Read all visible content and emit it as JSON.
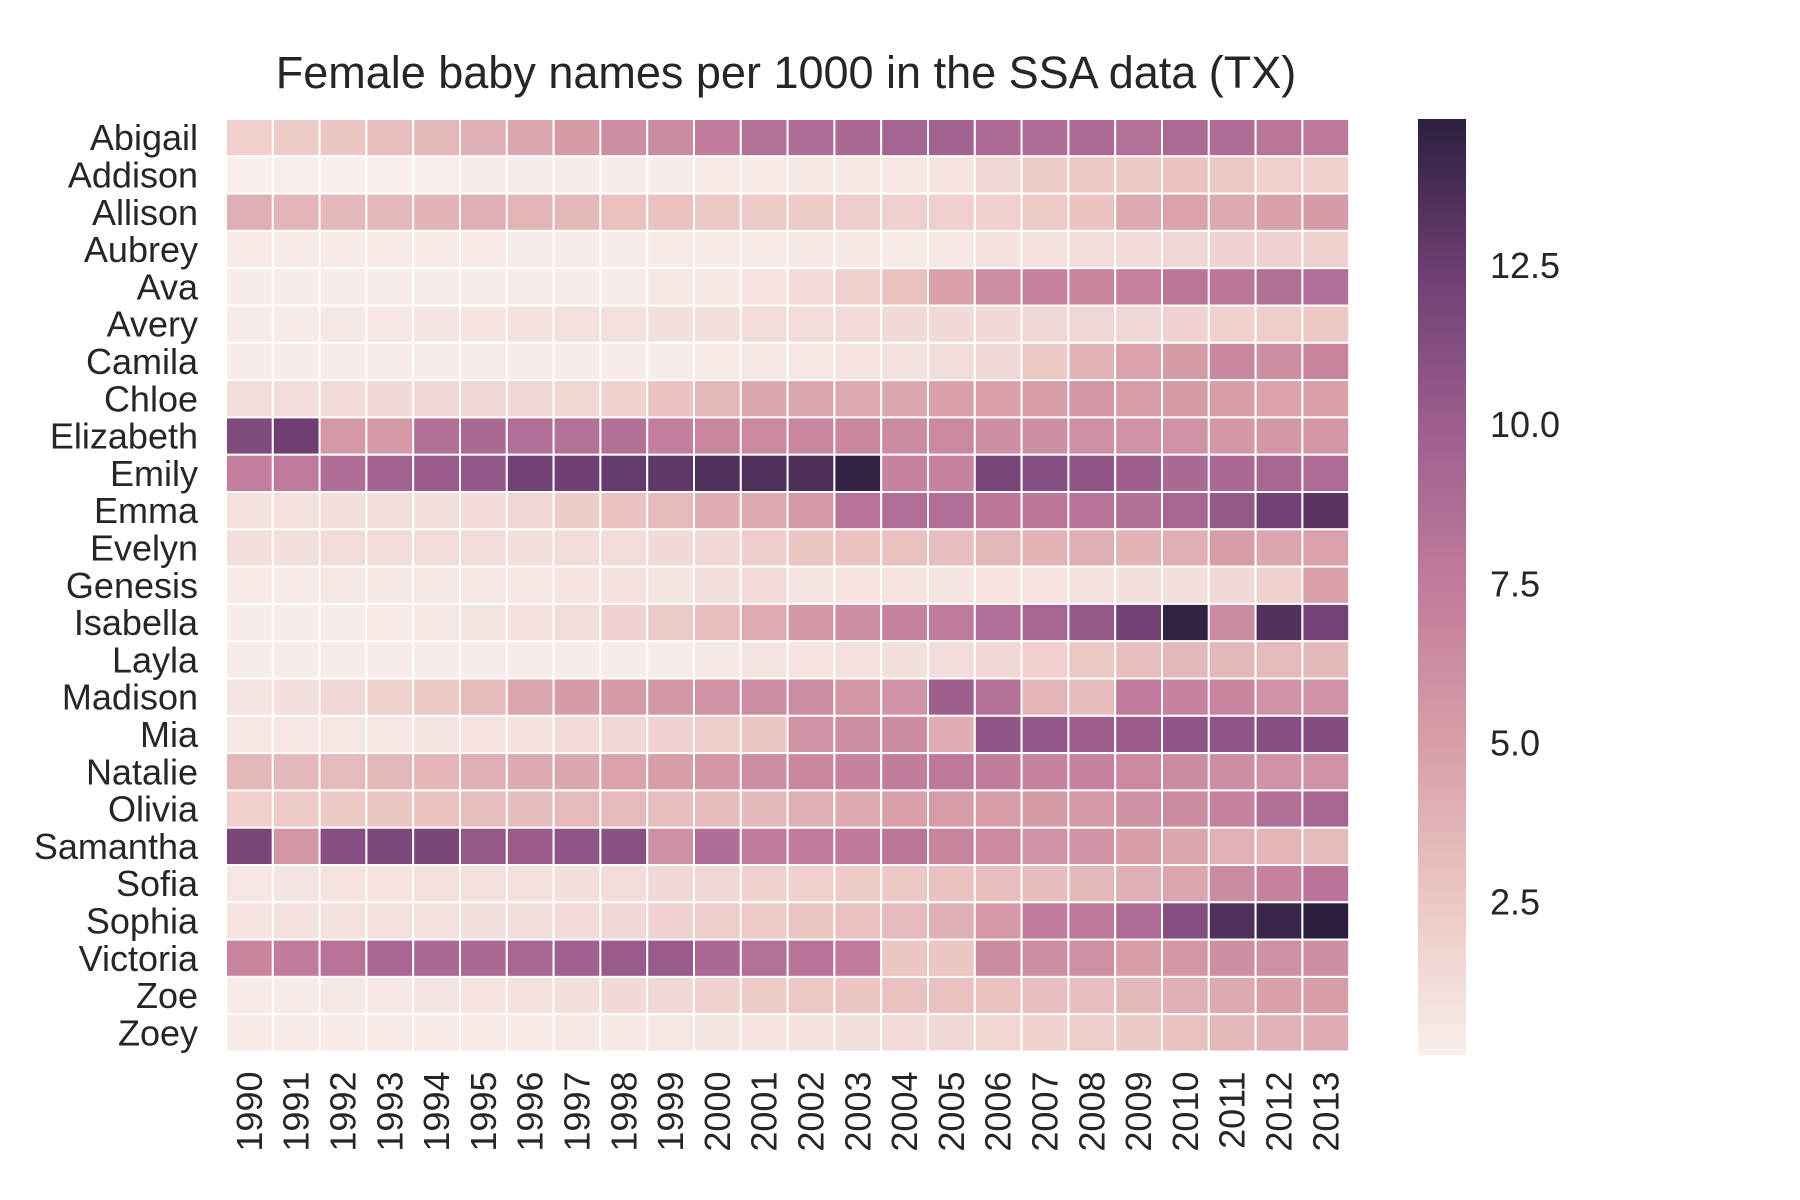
{
  "chart_data": {
    "type": "heatmap",
    "title": "Female baby names per 1000 in the SSA data (TX)",
    "xlabel": "",
    "ylabel": "",
    "x": [
      "1990",
      "1991",
      "1992",
      "1993",
      "1994",
      "1995",
      "1996",
      "1997",
      "1998",
      "1999",
      "2000",
      "2001",
      "2002",
      "2003",
      "2004",
      "2005",
      "2006",
      "2007",
      "2008",
      "2009",
      "2010",
      "2011",
      "2012",
      "2013"
    ],
    "y": [
      "Abigail",
      "Addison",
      "Allison",
      "Aubrey",
      "Ava",
      "Avery",
      "Camila",
      "Chloe",
      "Elizabeth",
      "Emily",
      "Emma",
      "Evelyn",
      "Genesis",
      "Isabella",
      "Layla",
      "Madison",
      "Mia",
      "Natalie",
      "Olivia",
      "Samantha",
      "Sofia",
      "Sophia",
      "Victoria",
      "Zoe",
      "Zoey"
    ],
    "values": [
      [
        2.0,
        2.3,
        2.6,
        3.0,
        3.4,
        3.9,
        4.4,
        5.2,
        6.2,
        6.4,
        7.4,
        8.4,
        8.7,
        9.0,
        9.4,
        9.6,
        8.9,
        8.7,
        8.9,
        8.4,
        8.9,
        8.7,
        8.0,
        7.7
      ],
      [
        0.1,
        0.1,
        0.1,
        0.1,
        0.1,
        0.2,
        0.2,
        0.2,
        0.3,
        0.3,
        0.4,
        0.4,
        0.5,
        0.6,
        0.6,
        0.8,
        1.6,
        2.2,
        2.4,
        2.4,
        2.7,
        2.4,
        2.0,
        2.0
      ],
      [
        4.0,
        3.6,
        3.4,
        3.4,
        3.7,
        4.0,
        3.6,
        3.4,
        2.9,
        2.8,
        2.4,
        2.3,
        2.3,
        2.1,
        2.0,
        2.0,
        2.0,
        2.3,
        2.7,
        4.3,
        4.7,
        4.3,
        4.9,
        5.2
      ],
      [
        0.4,
        0.4,
        0.4,
        0.4,
        0.4,
        0.4,
        0.3,
        0.3,
        0.3,
        0.4,
        0.4,
        0.4,
        0.5,
        0.5,
        0.4,
        0.6,
        0.9,
        1.0,
        1.2,
        1.3,
        1.6,
        1.8,
        1.8,
        1.9
      ],
      [
        0.2,
        0.2,
        0.2,
        0.2,
        0.2,
        0.2,
        0.2,
        0.2,
        0.3,
        0.5,
        0.5,
        0.8,
        1.3,
        1.9,
        2.8,
        4.8,
        6.3,
        7.0,
        6.8,
        7.1,
        8.0,
        7.9,
        8.5,
        8.6
      ],
      [
        0.3,
        0.4,
        0.5,
        0.6,
        0.7,
        0.8,
        0.9,
        1.0,
        1.0,
        1.1,
        1.1,
        1.2,
        1.2,
        1.3,
        1.4,
        1.4,
        1.4,
        1.5,
        1.6,
        1.6,
        1.8,
        1.9,
        2.1,
        2.4
      ],
      [
        0.2,
        0.2,
        0.2,
        0.2,
        0.2,
        0.3,
        0.3,
        0.3,
        0.3,
        0.3,
        0.4,
        0.5,
        0.6,
        0.8,
        0.9,
        1.2,
        1.5,
        2.4,
        3.7,
        4.7,
        5.2,
        6.6,
        6.1,
        6.9
      ],
      [
        1.2,
        1.2,
        1.3,
        1.4,
        1.5,
        1.6,
        1.6,
        1.7,
        1.9,
        2.7,
        3.5,
        4.4,
        4.6,
        4.3,
        4.4,
        4.8,
        4.8,
        5.0,
        5.5,
        5.1,
        5.2,
        5.0,
        4.7,
        4.9
      ],
      [
        11.5,
        12.4,
        5.4,
        5.4,
        8.5,
        9.0,
        8.6,
        8.4,
        8.5,
        7.3,
        6.7,
        6.5,
        6.7,
        6.6,
        6.4,
        6.5,
        6.1,
        6.1,
        6.0,
        5.9,
        5.8,
        5.5,
        5.5,
        5.6
      ],
      [
        7.3,
        7.6,
        8.7,
        9.5,
        10.2,
        10.5,
        12.2,
        12.3,
        12.7,
        13.0,
        13.5,
        13.5,
        13.6,
        14.5,
        7.0,
        7.0,
        12.0,
        11.1,
        10.6,
        9.9,
        9.0,
        9.1,
        9.2,
        8.8
      ],
      [
        0.9,
        1.0,
        1.1,
        1.1,
        1.1,
        1.3,
        1.6,
        2.2,
        2.8,
        3.3,
        4.1,
        4.3,
        5.4,
        8.2,
        8.6,
        8.6,
        8.0,
        7.9,
        8.2,
        8.5,
        9.3,
        10.3,
        12.2,
        13.1
      ],
      [
        1.1,
        1.1,
        1.2,
        1.2,
        1.2,
        1.2,
        1.1,
        1.2,
        1.2,
        1.4,
        1.5,
        2.1,
        2.6,
        2.8,
        2.9,
        3.1,
        3.5,
        3.7,
        4.0,
        3.7,
        4.0,
        5.0,
        4.5,
        4.7
      ],
      [
        0.4,
        0.4,
        0.5,
        0.5,
        0.5,
        0.6,
        0.6,
        0.8,
        0.9,
        0.7,
        1.1,
        1.3,
        0.7,
        0.8,
        0.8,
        0.7,
        0.8,
        0.8,
        0.9,
        1.1,
        1.1,
        1.4,
        1.9,
        4.9
      ],
      [
        0.2,
        0.2,
        0.3,
        0.4,
        0.5,
        0.7,
        0.9,
        1.2,
        1.8,
        2.3,
        3.0,
        4.2,
        5.5,
        6.2,
        7.0,
        7.6,
        8.6,
        9.3,
        10.3,
        12.2,
        14.6,
        6.4,
        13.4,
        12.1
      ],
      [
        0.3,
        0.3,
        0.3,
        0.3,
        0.3,
        0.3,
        0.3,
        0.2,
        0.2,
        0.3,
        0.5,
        0.7,
        0.8,
        1.0,
        1.1,
        1.2,
        1.5,
        2.0,
        2.5,
        3.0,
        3.5,
        3.5,
        3.3,
        3.4
      ],
      [
        0.7,
        1.1,
        1.5,
        1.9,
        2.4,
        3.3,
        4.6,
        5.2,
        5.2,
        5.5,
        5.9,
        6.3,
        6.3,
        5.6,
        5.7,
        9.9,
        8.4,
        3.6,
        3.2,
        7.5,
        7.0,
        6.8,
        5.8,
        5.9
      ],
      [
        0.5,
        0.6,
        0.6,
        0.6,
        0.7,
        0.8,
        1.0,
        1.3,
        1.5,
        1.8,
        2.1,
        2.6,
        5.7,
        6.2,
        6.4,
        4.1,
        10.7,
        10.5,
        9.9,
        10.2,
        10.6,
        10.7,
        11.1,
        11.3
      ],
      [
        3.5,
        3.4,
        3.3,
        3.5,
        3.6,
        4.0,
        4.3,
        4.4,
        4.7,
        5.0,
        5.5,
        6.2,
        6.6,
        7.0,
        7.4,
        7.8,
        7.4,
        7.0,
        7.0,
        6.5,
        6.4,
        6.2,
        5.8,
        5.9
      ],
      [
        2.0,
        2.2,
        2.4,
        2.6,
        2.8,
        3.1,
        3.2,
        3.3,
        3.3,
        3.0,
        3.2,
        3.4,
        3.9,
        4.3,
        4.9,
        5.1,
        5.1,
        5.2,
        5.4,
        6.0,
        6.4,
        7.1,
        8.5,
        9.3
      ],
      [
        11.8,
        5.6,
        11.1,
        11.6,
        11.8,
        10.4,
        10.2,
        10.7,
        11.0,
        6.0,
        8.7,
        7.6,
        7.5,
        7.7,
        8.0,
        6.9,
        6.5,
        5.9,
        5.7,
        5.0,
        4.5,
        3.8,
        3.6,
        3.3
      ],
      [
        0.6,
        0.7,
        0.8,
        0.8,
        0.9,
        1.0,
        1.0,
        1.1,
        1.2,
        1.5,
        1.6,
        1.9,
        2.0,
        2.2,
        2.4,
        2.8,
        3.0,
        3.2,
        3.4,
        3.9,
        4.5,
        6.4,
        7.0,
        8.1
      ],
      [
        0.8,
        0.9,
        0.9,
        1.0,
        1.0,
        1.1,
        1.2,
        1.3,
        1.5,
        1.8,
        2.1,
        2.3,
        2.6,
        2.9,
        3.3,
        4.0,
        5.4,
        7.6,
        7.8,
        8.8,
        11.2,
        13.5,
        14.3,
        14.8
      ],
      [
        6.8,
        7.5,
        8.2,
        9.2,
        9.1,
        9.1,
        9.3,
        9.8,
        10.2,
        10.2,
        9.1,
        8.4,
        8.2,
        7.6,
        2.6,
        2.6,
        6.4,
        6.2,
        6.0,
        5.0,
        5.6,
        6.1,
        6.0,
        6.1
      ],
      [
        0.4,
        0.4,
        0.5,
        0.6,
        0.7,
        0.8,
        0.9,
        1.1,
        1.4,
        1.6,
        1.9,
        2.2,
        2.4,
        2.6,
        2.8,
        2.9,
        2.9,
        3.0,
        3.0,
        3.4,
        3.9,
        4.3,
        4.9,
        5.0
      ],
      [
        0.4,
        0.4,
        0.4,
        0.4,
        0.4,
        0.4,
        0.4,
        0.5,
        0.5,
        0.6,
        0.7,
        0.8,
        0.9,
        1.1,
        1.3,
        1.5,
        1.7,
        1.9,
        2.1,
        2.4,
        2.9,
        3.4,
        3.8,
        4.1
      ]
    ],
    "colorbar": {
      "min": 0.1,
      "max": 14.8,
      "ticks": [
        2.5,
        5.0,
        7.5,
        10.0,
        12.5
      ],
      "tick_labels": [
        "2.5",
        "5.0",
        "7.5",
        "10.0",
        "12.5"
      ],
      "colors": [
        "#f8efec",
        "#ecc7c3",
        "#d79ea8",
        "#c27c9c",
        "#9e5f8f",
        "#6f3f73",
        "#2c1f3f"
      ]
    },
    "grid": false,
    "legend": "colorbar-right"
  }
}
